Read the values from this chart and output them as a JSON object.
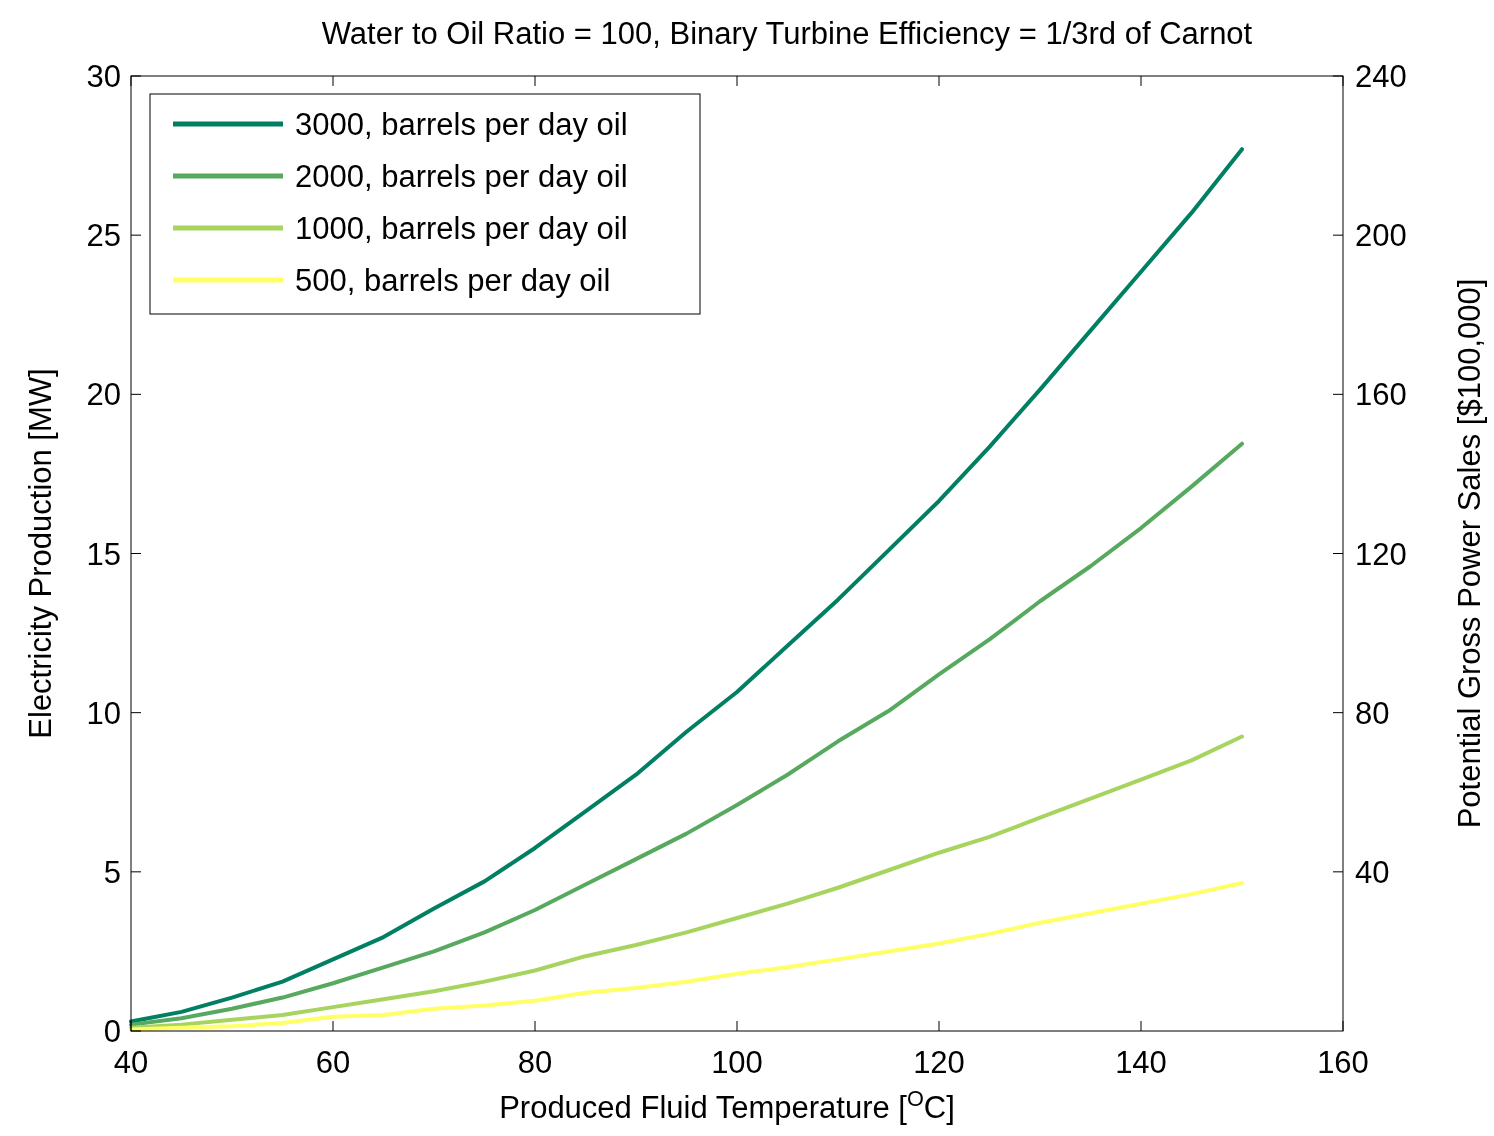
{
  "chart_data": {
    "type": "line",
    "title": "Water to Oil Ratio = 100, Binary Turbine Efficiency = 1/3rd of Carnot",
    "xlabel": "Produced Fluid Temperature [$^{O}$C]",
    "ylabel": "Electricity Production [MW]",
    "y2label": "Potential Gross Power Sales [$100,000]",
    "x": [
      40,
      45,
      50,
      55,
      60,
      65,
      70,
      75,
      80,
      85,
      90,
      95,
      100,
      105,
      110,
      115,
      120,
      125,
      130,
      135,
      140,
      145,
      150
    ],
    "series": [
      {
        "name": "3000, barrels per day oil",
        "color": "#007f63",
        "values": [
          0.3,
          0.6,
          1.05,
          1.55,
          2.25,
          2.95,
          3.85,
          4.7,
          5.75,
          6.9,
          8.05,
          9.4,
          10.65,
          12.1,
          13.55,
          15.1,
          16.65,
          18.35,
          20.15,
          22.0,
          23.85,
          25.7,
          27.7
        ]
      },
      {
        "name": "2000, barrels per day oil",
        "color": "#56a95e",
        "values": [
          0.2,
          0.4,
          0.7,
          1.05,
          1.5,
          2.0,
          2.5,
          3.1,
          3.8,
          4.6,
          5.4,
          6.2,
          7.1,
          8.05,
          9.1,
          10.05,
          11.2,
          12.3,
          13.5,
          14.6,
          15.8,
          17.1,
          18.45
        ]
      },
      {
        "name": "1000, barrels per day oil",
        "color": "#a6d45e",
        "values": [
          0.1,
          0.2,
          0.35,
          0.5,
          0.75,
          1.0,
          1.25,
          1.55,
          1.9,
          2.35,
          2.7,
          3.1,
          3.55,
          4.0,
          4.5,
          5.05,
          5.6,
          6.1,
          6.7,
          7.3,
          7.9,
          8.5,
          9.25
        ]
      },
      {
        "name": "500, barrels per day oil",
        "color": "#ffff66",
        "values": [
          0.05,
          0.1,
          0.15,
          0.25,
          0.45,
          0.5,
          0.7,
          0.8,
          0.95,
          1.2,
          1.35,
          1.55,
          1.8,
          2.0,
          2.25,
          2.5,
          2.75,
          3.05,
          3.4,
          3.7,
          4.0,
          4.3,
          4.65
        ]
      }
    ],
    "xlim": [
      40,
      160
    ],
    "xticks": [
      40,
      60,
      80,
      100,
      120,
      140,
      160
    ],
    "ylim": [
      0,
      30
    ],
    "yticks": [
      0,
      5,
      10,
      15,
      20,
      25,
      30
    ],
    "y2lim": [
      0,
      240
    ],
    "y2ticks": [
      40,
      80,
      120,
      160,
      200,
      240
    ],
    "legend": "top left",
    "grid": false
  }
}
